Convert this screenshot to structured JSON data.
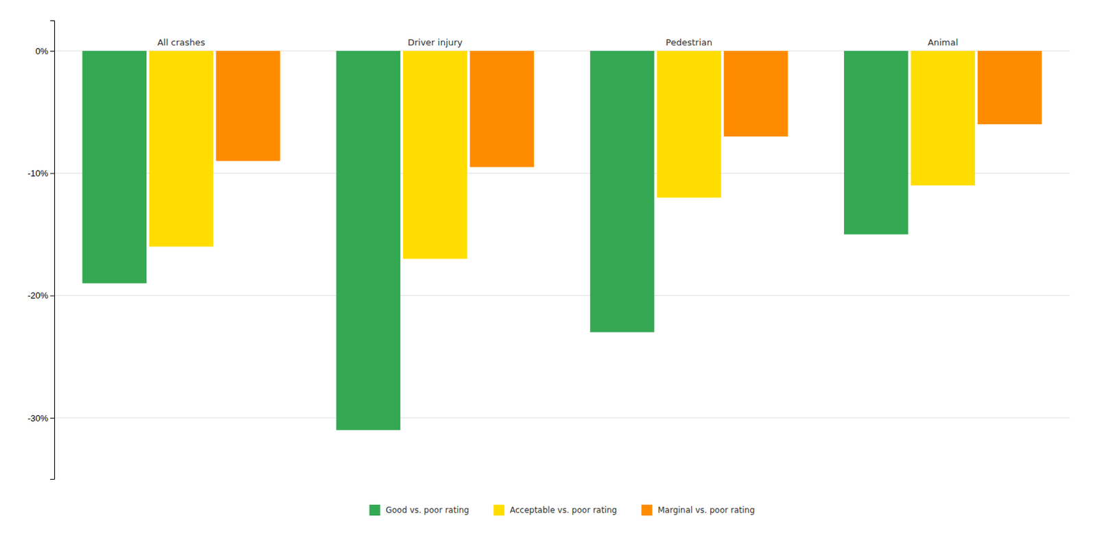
{
  "chart_data": {
    "type": "bar",
    "categories": [
      "All crashes",
      "Driver injury",
      "Pedestrian",
      "Animal"
    ],
    "series": [
      {
        "name": "Good vs. poor rating",
        "color": "#34a853",
        "values": [
          -19,
          -31,
          -23,
          -15
        ]
      },
      {
        "name": "Acceptable vs. poor rating",
        "color": "#ffdd00",
        "values": [
          -16,
          -17,
          -12,
          -11
        ]
      },
      {
        "name": "Marginal vs. poor rating",
        "color": "#ff8c00",
        "values": [
          -9,
          -9.5,
          -7,
          -6
        ]
      }
    ],
    "ylim": [
      -35,
      2.5
    ],
    "yticks": [
      {
        "value": 0,
        "label": "0%"
      },
      {
        "value": -10,
        "label": "-10%"
      },
      {
        "value": -20,
        "label": "-20%"
      },
      {
        "value": -30,
        "label": "-30%"
      }
    ],
    "grid": true,
    "legend": "bottom"
  }
}
